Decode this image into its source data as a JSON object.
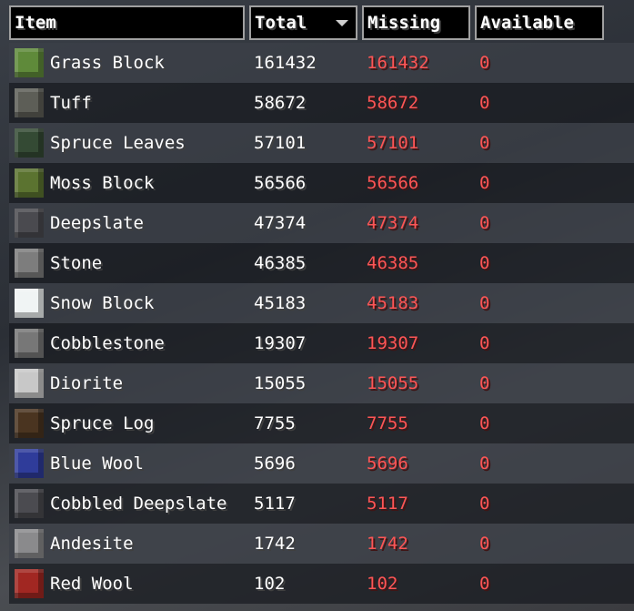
{
  "table": {
    "headers": [
      "Item",
      "Total",
      "Missing",
      "Available"
    ],
    "rows": [
      [
        "Grass Block",
        161432,
        161432,
        0
      ],
      [
        "Tuff",
        58672,
        58672,
        0
      ],
      [
        "Spruce Leaves",
        57101,
        57101,
        0
      ],
      [
        "Moss Block",
        56566,
        56566,
        0
      ],
      [
        "Deepslate",
        47374,
        47374,
        0
      ],
      [
        "Stone",
        46385,
        46385,
        0
      ],
      [
        "Snow Block",
        45183,
        45183,
        0
      ],
      [
        "Cobblestone",
        19307,
        19307,
        0
      ],
      [
        "Diorite",
        15055,
        15055,
        0
      ],
      [
        "Spruce Log",
        7755,
        7755,
        0
      ],
      [
        "Blue Wool",
        5696,
        5696,
        0
      ],
      [
        "Cobbled Deepslate",
        5117,
        5117,
        0
      ],
      [
        "Andesite",
        1742,
        1742,
        0
      ],
      [
        "Red Wool",
        102,
        102,
        0
      ]
    ]
  }
}
